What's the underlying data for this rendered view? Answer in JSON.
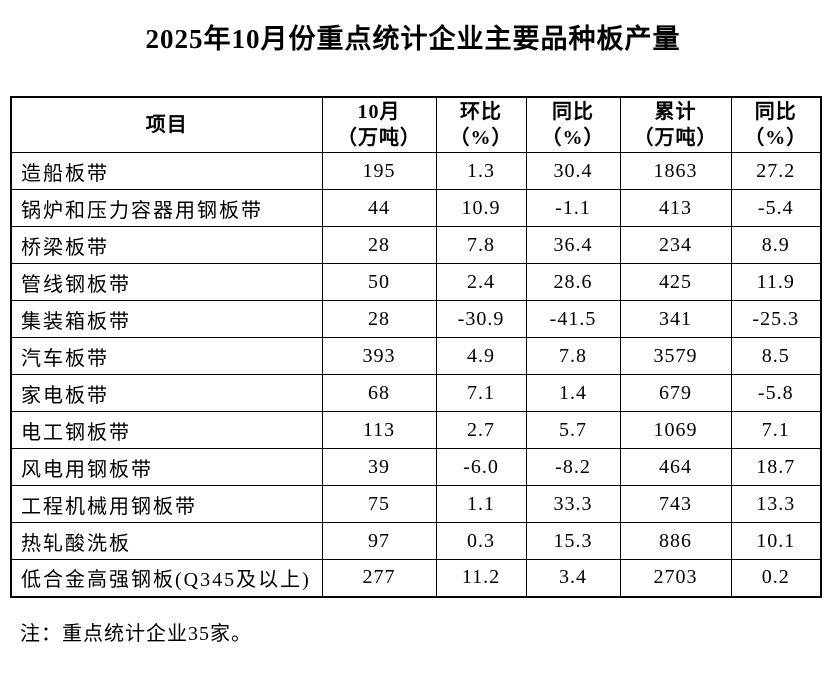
{
  "page": {
    "title": "2025年10月份重点统计企业主要品种板产量",
    "note": "注：重点统计企业35家。"
  },
  "table": {
    "columns": [
      {
        "name": "item",
        "lines": [
          "项目"
        ]
      },
      {
        "name": "october-volume",
        "lines": [
          "10月",
          "（万吨）"
        ]
      },
      {
        "name": "mom-percent",
        "lines": [
          "环比",
          "（%）"
        ]
      },
      {
        "name": "yoy-percent",
        "lines": [
          "同比",
          "（%）"
        ]
      },
      {
        "name": "cumulative",
        "lines": [
          "累计",
          "（万吨）"
        ]
      },
      {
        "name": "cum-yoy",
        "lines": [
          "同比",
          "（%）"
        ]
      }
    ],
    "rows": [
      {
        "label": "造船板带",
        "values": [
          "195",
          "1.3",
          "30.4",
          "1863",
          "27.2"
        ]
      },
      {
        "label": "锅炉和压力容器用钢板带",
        "values": [
          "44",
          "10.9",
          "-1.1",
          "413",
          "-5.4"
        ]
      },
      {
        "label": "桥梁板带",
        "values": [
          "28",
          "7.8",
          "36.4",
          "234",
          "8.9"
        ]
      },
      {
        "label": "管线钢板带",
        "values": [
          "50",
          "2.4",
          "28.6",
          "425",
          "11.9"
        ]
      },
      {
        "label": "集装箱板带",
        "values": [
          "28",
          "-30.9",
          "-41.5",
          "341",
          "-25.3"
        ]
      },
      {
        "label": "汽车板带",
        "values": [
          "393",
          "4.9",
          "7.8",
          "3579",
          "8.5"
        ]
      },
      {
        "label": "家电板带",
        "values": [
          "68",
          "7.1",
          "1.4",
          "679",
          "-5.8"
        ]
      },
      {
        "label": "电工钢板带",
        "values": [
          "113",
          "2.7",
          "5.7",
          "1069",
          "7.1"
        ]
      },
      {
        "label": "风电用钢板带",
        "values": [
          "39",
          "-6.0",
          "-8.2",
          "464",
          "18.7"
        ]
      },
      {
        "label": "工程机械用钢板带",
        "values": [
          "75",
          "1.1",
          "33.3",
          "743",
          "13.3"
        ]
      },
      {
        "label": "热轧酸洗板",
        "values": [
          "97",
          "0.3",
          "15.3",
          "886",
          "10.1"
        ]
      },
      {
        "label": "低合金高强钢板(Q345及以上)",
        "values": [
          "277",
          "11.2",
          "3.4",
          "2703",
          "0.2"
        ]
      }
    ]
  }
}
